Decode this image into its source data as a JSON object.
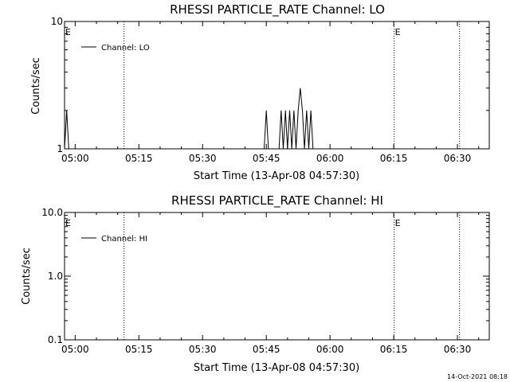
{
  "footer_timestamp": "14-Oct-2021 08:18",
  "chart_data": [
    {
      "type": "line",
      "title": "RHESSI PARTICLE_RATE Channel: LO",
      "xlabel": "Start Time (13-Apr-08 04:57:30)",
      "ylabel": "Counts/sec",
      "yscale": "log",
      "ylim": [
        1,
        10
      ],
      "xlim_minutes": [
        0,
        100
      ],
      "x_tick_labels": [
        "05:00",
        "05:15",
        "05:30",
        "05:45",
        "06:00",
        "06:15",
        "06:30"
      ],
      "y_tick_labels": [
        "1",
        "10"
      ],
      "legend": {
        "entries": [
          "Channel: LO"
        ],
        "placement": "top-left"
      },
      "vertical_dotted_lines_minutes": [
        14.0,
        77.6,
        93.0
      ],
      "markers": [
        {
          "label": "E",
          "x_minutes": 0
        },
        {
          "label": "E",
          "x_minutes": 77.6
        }
      ],
      "series": [
        {
          "name": "Channel: LO",
          "points": [
            [
              0.0,
              1
            ],
            [
              0.5,
              2
            ],
            [
              1.0,
              1
            ],
            [
              47.0,
              1
            ],
            [
              47.5,
              2
            ],
            [
              48.0,
              1
            ],
            [
              50.5,
              1
            ],
            [
              51.0,
              2
            ],
            [
              51.5,
              1
            ],
            [
              52.0,
              2
            ],
            [
              52.5,
              1
            ],
            [
              53.0,
              2
            ],
            [
              53.5,
              1
            ],
            [
              54.0,
              2
            ],
            [
              54.5,
              1
            ],
            [
              55.0,
              2
            ],
            [
              55.5,
              3
            ],
            [
              56.0,
              2
            ],
            [
              56.5,
              1
            ],
            [
              57.0,
              2
            ],
            [
              57.5,
              1
            ],
            [
              58.0,
              2
            ],
            [
              58.5,
              1
            ]
          ]
        }
      ]
    },
    {
      "type": "line",
      "title": "RHESSI PARTICLE_RATE Channel: HI",
      "xlabel": "Start Time (13-Apr-08 04:57:30)",
      "ylabel": "Counts/sec",
      "yscale": "log",
      "ylim": [
        0.1,
        10
      ],
      "xlim_minutes": [
        0,
        100
      ],
      "x_tick_labels": [
        "05:00",
        "05:15",
        "05:30",
        "05:45",
        "06:00",
        "06:15",
        "06:30"
      ],
      "y_tick_labels": [
        "0.1",
        "1.0",
        "10.0"
      ],
      "legend": {
        "entries": [
          "Channel: HI"
        ],
        "placement": "top-left"
      },
      "vertical_dotted_lines_minutes": [
        14.0,
        77.6,
        93.0
      ],
      "markers": [
        {
          "label": "E",
          "x_minutes": 0
        },
        {
          "label": "E",
          "x_minutes": 77.6
        }
      ],
      "series": [
        {
          "name": "Channel: HI",
          "points": []
        }
      ]
    }
  ]
}
